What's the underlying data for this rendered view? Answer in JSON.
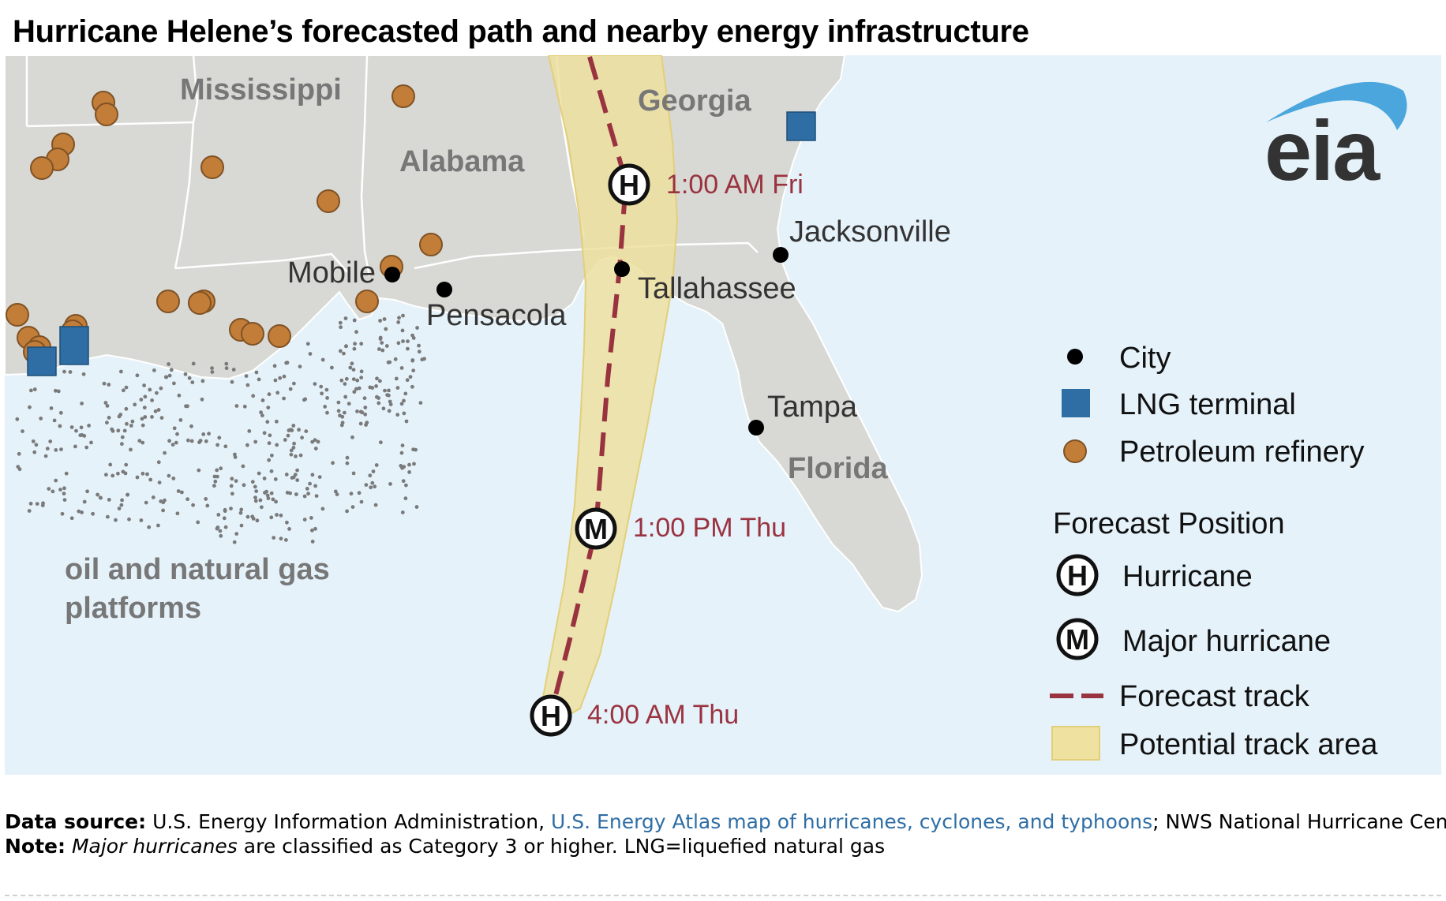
{
  "title": "Hurricane Helene’s forecasted path and nearby energy infrastructure",
  "logo_text": "eia",
  "states": [
    "Mississippi",
    "Alabama",
    "Georgia",
    "Florida"
  ],
  "cities": [
    {
      "name": "Mobile"
    },
    {
      "name": "Pensacola"
    },
    {
      "name": "Tallahassee"
    },
    {
      "name": "Jacksonville"
    },
    {
      "name": "Tampa"
    }
  ],
  "forecast_points": [
    {
      "time": "1:00 AM Fri",
      "category": "Hurricane",
      "symbol": "H"
    },
    {
      "time": "1:00 PM Thu",
      "category": "Major hurricane",
      "symbol": "M"
    },
    {
      "time": "4:00 AM Thu",
      "category": "Hurricane",
      "symbol": "H"
    }
  ],
  "platforms_label": [
    "oil and natural gas",
    "platforms"
  ],
  "legend": {
    "city": "City",
    "lng": "LNG terminal",
    "refinery": "Petroleum refinery",
    "forecast_heading": "Forecast Position",
    "hurricane": "Hurricane",
    "major": "Major hurricane",
    "track": "Forecast track",
    "area": "Potential track area"
  },
  "colors": {
    "ocean": "#e5f2fa",
    "land": "#d8d8d4",
    "refinery": "#c27d38",
    "lng": "#2e6ea4",
    "track": "#9a3340",
    "track_area": "#efe1a0",
    "forecast_label": "#9a3340"
  },
  "footer": {
    "source_label": "Data source:",
    "source_text": "U.S. Energy Information Administration,",
    "source_link": "U.S. Energy Atlas map of hurricanes, cyclones, and typhoons",
    "source_tail": "; NWS National Hurricane Center",
    "note_label": "Note:",
    "note_em": "Major hurricanes",
    "note_text": "are classified as Category 3 or higher. LNG=liquefied natural gas"
  }
}
